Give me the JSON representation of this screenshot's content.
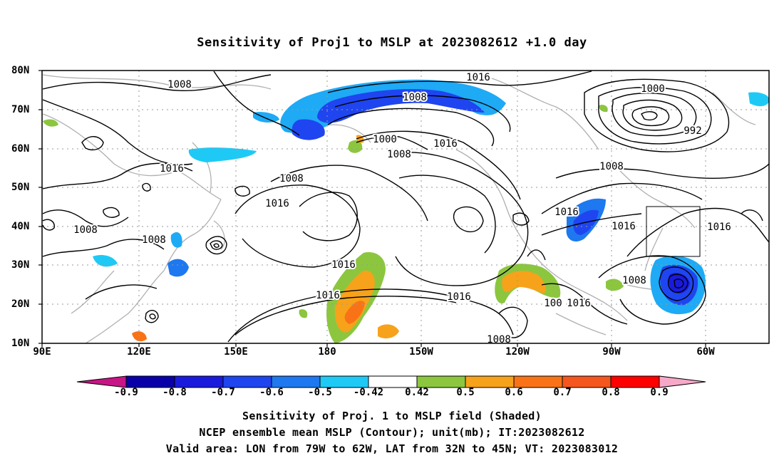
{
  "title": "Sensitivity of Proj1 to MSLP at 2023082612 +1.0 day",
  "lat_labels": [
    "80N",
    "70N",
    "60N",
    "50N",
    "40N",
    "30N",
    "20N",
    "10N"
  ],
  "lon_labels": [
    "90E",
    "120E",
    "150E",
    "180",
    "150W",
    "120W",
    "90W",
    "60W"
  ],
  "contour_labels": [
    {
      "text": "1008"
    },
    {
      "text": "1016"
    },
    {
      "text": "1008"
    },
    {
      "text": "1000"
    },
    {
      "text": "1008"
    },
    {
      "text": "1016"
    },
    {
      "text": "1000"
    },
    {
      "text": "992"
    },
    {
      "text": "1016"
    },
    {
      "text": "1008"
    },
    {
      "text": "1016"
    },
    {
      "text": "1008"
    },
    {
      "text": "1008"
    },
    {
      "text": "1016"
    },
    {
      "text": "1016"
    },
    {
      "text": "1016"
    },
    {
      "text": "1016"
    },
    {
      "text": "1016"
    },
    {
      "text": "1016"
    },
    {
      "text": "100"
    },
    {
      "text": "1016"
    },
    {
      "text": "1008"
    },
    {
      "text": "1008"
    }
  ],
  "colorbar": {
    "ticks": [
      "-0.9",
      "-0.8",
      "-0.7",
      "-0.6",
      "-0.5",
      "-0.42",
      "0.42",
      "0.5",
      "0.6",
      "0.7",
      "0.8",
      "0.9"
    ],
    "colors": [
      "#c71585",
      "#0a00a8",
      "#1a1add",
      "#1f45f0",
      "#1e78f0",
      "#1eaaf5",
      "#1ecaf5",
      "#ffffff",
      "#8cc63f",
      "#f7a21b",
      "#f97316",
      "#f5561e",
      "#fa3214",
      "#ff0000",
      "#f7a8c8"
    ],
    "low_extend_color": "#c71585",
    "high_extend_color": "#f7a8c8"
  },
  "valid_area": {
    "lon_from": "79W",
    "lon_to": "62W",
    "lat_from": "32N",
    "lat_to": "45N"
  },
  "footer": {
    "line1": "Sensitivity of Proj. 1 to MSLP field (Shaded)",
    "line2": "NCEP ensemble mean MSLP (Contour); unit(mb); IT:2023082612",
    "line3": "Valid area: LON from 79W to 62W, LAT from 32N to 45N; VT: 2023083012"
  }
}
